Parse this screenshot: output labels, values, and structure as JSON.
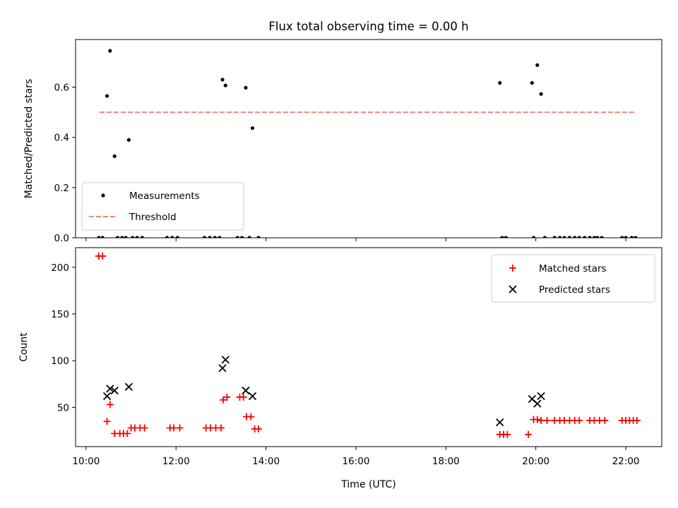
{
  "figure": {
    "title": "Flux total observing time = 0.00 h",
    "xlabel": "Time (UTC)",
    "xticks": [
      "10:00",
      "12:00",
      "14:00",
      "16:00",
      "18:00",
      "20:00",
      "22:00"
    ]
  },
  "colors": {
    "measurement": "#000000",
    "threshold": "#ff8080",
    "matched": "#ff0000",
    "predicted": "#000000"
  },
  "chart_data": [
    {
      "type": "scatter",
      "ylabel": "Matched/Predicted stars",
      "xlim": [
        "09:46",
        "22:48"
      ],
      "ylim": [
        0,
        0.79
      ],
      "yticks": [
        "0.0",
        "0.2",
        "0.4",
        "0.6"
      ],
      "legend_position": "lower-left",
      "legend": [
        "Measurements",
        "Threshold"
      ],
      "threshold": {
        "name": "Threshold",
        "value": 0.5,
        "x_range": [
          "10:18",
          "22:13"
        ]
      },
      "measurements": {
        "name": "Measurements",
        "points": [
          [
            "10:17",
            0
          ],
          [
            "10:22",
            0
          ],
          [
            "10:28",
            0.565
          ],
          [
            "10:32",
            0.745
          ],
          [
            "10:38",
            0.325
          ],
          [
            "10:42",
            0
          ],
          [
            "10:48",
            0
          ],
          [
            "10:53",
            0
          ],
          [
            "10:57",
            0.39
          ],
          [
            "11:02",
            0
          ],
          [
            "11:08",
            0
          ],
          [
            "11:15",
            0
          ],
          [
            "11:48",
            0
          ],
          [
            "11:55",
            0
          ],
          [
            "12:02",
            0
          ],
          [
            "12:38",
            0
          ],
          [
            "12:45",
            0
          ],
          [
            "12:52",
            0
          ],
          [
            "12:58",
            0
          ],
          [
            "13:02",
            0.63
          ],
          [
            "13:06",
            0.607
          ],
          [
            "13:22",
            0
          ],
          [
            "13:28",
            0
          ],
          [
            "13:33",
            0.598
          ],
          [
            "13:38",
            0
          ],
          [
            "13:42",
            0.437
          ],
          [
            "13:50",
            0
          ],
          [
            "19:12",
            0.617
          ],
          [
            "19:15",
            0
          ],
          [
            "19:20",
            0
          ],
          [
            "19:55",
            0.617
          ],
          [
            "19:57",
            0
          ],
          [
            "20:02",
            0.688
          ],
          [
            "20:07",
            0.573
          ],
          [
            "20:12",
            0
          ],
          [
            "20:25",
            0
          ],
          [
            "20:32",
            0
          ],
          [
            "20:38",
            0
          ],
          [
            "20:45",
            0
          ],
          [
            "20:52",
            0
          ],
          [
            "20:58",
            0
          ],
          [
            "21:05",
            0
          ],
          [
            "21:12",
            0
          ],
          [
            "21:18",
            0
          ],
          [
            "21:22",
            0
          ],
          [
            "21:28",
            0
          ],
          [
            "21:55",
            0
          ],
          [
            "22:00",
            0
          ],
          [
            "22:08",
            0
          ],
          [
            "22:13",
            0
          ]
        ]
      }
    },
    {
      "type": "scatter",
      "ylabel": "Count",
      "xlim": [
        "09:46",
        "22:48"
      ],
      "ylim": [
        8,
        221
      ],
      "yticks": [
        "50",
        "100",
        "150",
        "200"
      ],
      "legend_position": "upper-right",
      "legend": [
        "Matched stars",
        "Predicted stars"
      ],
      "matched": {
        "name": "Matched stars",
        "points": [
          [
            "10:17",
            212
          ],
          [
            "10:22",
            212
          ],
          [
            "10:28",
            35
          ],
          [
            "10:32",
            53
          ],
          [
            "10:38",
            22
          ],
          [
            "10:45",
            22
          ],
          [
            "10:50",
            22
          ],
          [
            "10:55",
            22
          ],
          [
            "11:00",
            28
          ],
          [
            "11:05",
            28
          ],
          [
            "11:12",
            28
          ],
          [
            "11:18",
            28
          ],
          [
            "11:52",
            28
          ],
          [
            "11:57",
            28
          ],
          [
            "12:05",
            28
          ],
          [
            "12:40",
            28
          ],
          [
            "12:46",
            28
          ],
          [
            "12:53",
            28
          ],
          [
            "13:00",
            28
          ],
          [
            "13:03",
            58
          ],
          [
            "13:08",
            61
          ],
          [
            "13:25",
            61
          ],
          [
            "13:30",
            61
          ],
          [
            "13:34",
            40
          ],
          [
            "13:40",
            40
          ],
          [
            "13:45",
            27
          ],
          [
            "13:50",
            27
          ],
          [
            "19:12",
            21
          ],
          [
            "19:17",
            21
          ],
          [
            "19:22",
            21
          ],
          [
            "19:50",
            21
          ],
          [
            "19:57",
            37
          ],
          [
            "20:02",
            37
          ],
          [
            "20:07",
            36
          ],
          [
            "20:15",
            36
          ],
          [
            "20:25",
            36
          ],
          [
            "20:32",
            36
          ],
          [
            "20:38",
            36
          ],
          [
            "20:45",
            36
          ],
          [
            "20:52",
            36
          ],
          [
            "20:58",
            36
          ],
          [
            "21:12",
            36
          ],
          [
            "21:18",
            36
          ],
          [
            "21:25",
            36
          ],
          [
            "21:32",
            36
          ],
          [
            "21:55",
            36
          ],
          [
            "22:00",
            36
          ],
          [
            "22:05",
            36
          ],
          [
            "22:10",
            36
          ],
          [
            "22:15",
            36
          ]
        ]
      },
      "predicted": {
        "name": "Predicted stars",
        "points": [
          [
            "10:28",
            62
          ],
          [
            "10:32",
            70
          ],
          [
            "10:38",
            68
          ],
          [
            "10:57",
            72
          ],
          [
            "13:02",
            92
          ],
          [
            "13:06",
            101
          ],
          [
            "13:33",
            68
          ],
          [
            "13:42",
            62
          ],
          [
            "19:12",
            34
          ],
          [
            "19:55",
            59
          ],
          [
            "20:02",
            54
          ],
          [
            "20:07",
            62
          ]
        ]
      }
    }
  ]
}
